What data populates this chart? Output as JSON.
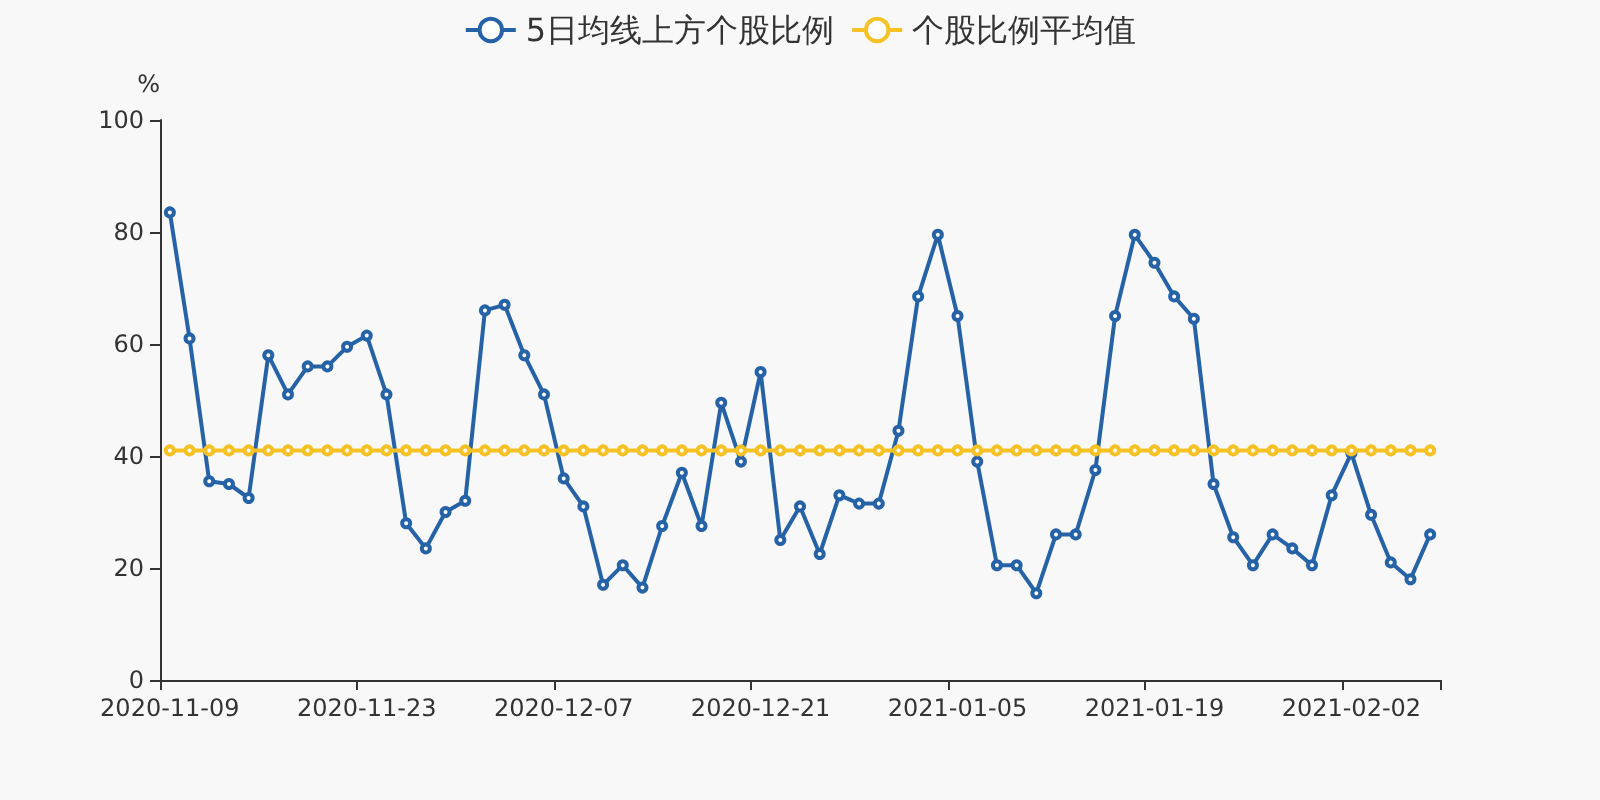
{
  "chart_data": {
    "type": "line",
    "ylabel": "%",
    "categories": [
      "2020-11-09",
      null,
      null,
      null,
      null,
      null,
      null,
      null,
      null,
      null,
      "2020-11-23",
      null,
      null,
      null,
      null,
      null,
      null,
      null,
      null,
      null,
      "2020-12-07",
      null,
      null,
      null,
      null,
      null,
      null,
      null,
      null,
      null,
      "2020-12-21",
      null,
      null,
      null,
      null,
      null,
      null,
      null,
      null,
      null,
      "2021-01-05",
      null,
      null,
      null,
      null,
      null,
      null,
      null,
      null,
      null,
      "2021-01-19",
      null,
      null,
      null,
      null,
      null,
      null,
      null,
      null,
      null,
      "2021-02-02",
      null,
      null,
      null,
      null
    ],
    "series": [
      {
        "name": "5日均线上方个股比例",
        "color": "#2662a6",
        "values": [
          83.5,
          61,
          35.5,
          35,
          32.5,
          58,
          51,
          56,
          56,
          59.5,
          61.5,
          51,
          28,
          23.5,
          30,
          32,
          66,
          67,
          58,
          51,
          36,
          31,
          17,
          20.5,
          16.5,
          27.5,
          37,
          27.5,
          49.5,
          39,
          55,
          25,
          31,
          22.5,
          33,
          31.5,
          31.5,
          44.5,
          68.5,
          79.5,
          65,
          39,
          20.5,
          20.5,
          15.5,
          26,
          26,
          37.5,
          65,
          79.5,
          74.5,
          68.5,
          64.5,
          35,
          25.5,
          20.5,
          26,
          23.5,
          20.5,
          33,
          40.5,
          29.5,
          21,
          18,
          26
        ]
      },
      {
        "name": "个股比例平均值",
        "color": "#f5c124",
        "values": [
          41,
          41,
          41,
          41,
          41,
          41,
          41,
          41,
          41,
          41,
          41,
          41,
          41,
          41,
          41,
          41,
          41,
          41,
          41,
          41,
          41,
          41,
          41,
          41,
          41,
          41,
          41,
          41,
          41,
          41,
          41,
          41,
          41,
          41,
          41,
          41,
          41,
          41,
          41,
          41,
          41,
          41,
          41,
          41,
          41,
          41,
          41,
          41,
          41,
          41,
          41,
          41,
          41,
          41,
          41,
          41,
          41,
          41,
          41,
          41,
          41,
          41,
          41,
          41,
          41
        ]
      }
    ],
    "ylim": [
      0,
      100
    ],
    "yticks": [
      0,
      20,
      40,
      60,
      80,
      100
    ],
    "grid": false,
    "legend": "top",
    "marker": "circle",
    "line_style": "solid"
  }
}
